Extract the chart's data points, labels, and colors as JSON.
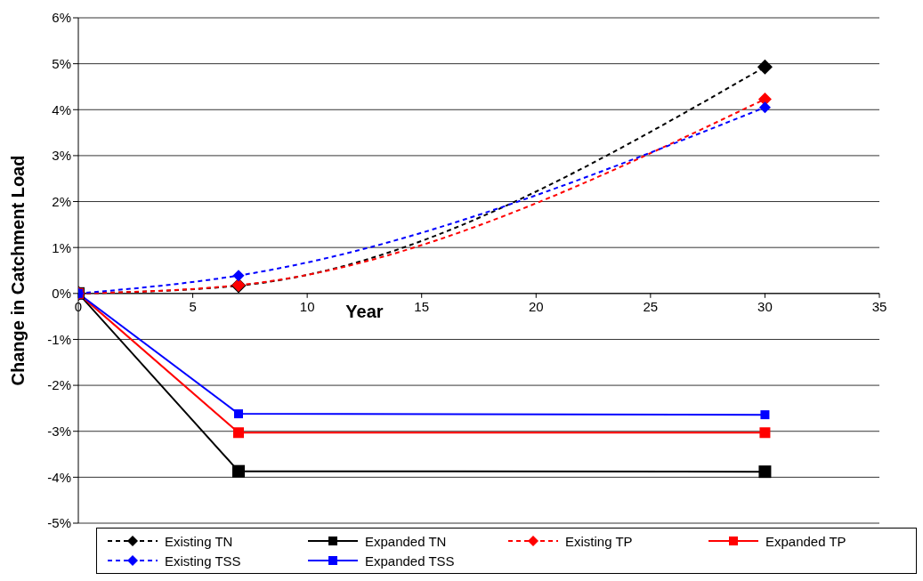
{
  "chart_data": {
    "type": "line",
    "xlabel": "Year",
    "ylabel": "Change in Catchment Load",
    "xlim": [
      0,
      35
    ],
    "xticks": [
      0,
      5,
      10,
      15,
      20,
      25,
      30,
      35
    ],
    "ylim": [
      -5,
      6
    ],
    "yticks": [
      {
        "value": -5,
        "label": "-5%"
      },
      {
        "value": -4,
        "label": "-4%"
      },
      {
        "value": -3,
        "label": "-3%"
      },
      {
        "value": -2,
        "label": "-2%"
      },
      {
        "value": -1,
        "label": "-1%"
      },
      {
        "value": 0,
        "label": "0%"
      },
      {
        "value": 1,
        "label": "1%"
      },
      {
        "value": 2,
        "label": "2%"
      },
      {
        "value": 3,
        "label": "3%"
      },
      {
        "value": 4,
        "label": "4%"
      },
      {
        "value": 5,
        "label": "5%"
      },
      {
        "value": 6,
        "label": "6%"
      }
    ],
    "grid": "y",
    "legend": "bottom",
    "x": [
      0,
      7,
      30
    ],
    "series": [
      {
        "name": "Existing TN",
        "color": "#000000",
        "values": [
          0,
          0.17,
          4.93
        ],
        "marker": "diamond",
        "line_style": "dashed"
      },
      {
        "name": "Expanded TN",
        "color": "#000000",
        "values": [
          0,
          -3.87,
          -3.88
        ],
        "marker": "square",
        "line_style": "solid"
      },
      {
        "name": "Existing TP",
        "color": "#ff0000",
        "values": [
          0,
          0.18,
          4.23
        ],
        "marker": "diamond",
        "line_style": "dashed"
      },
      {
        "name": "Expanded TP",
        "color": "#ff0000",
        "values": [
          0,
          -3.03,
          -3.03
        ],
        "marker": "square",
        "line_style": "solid"
      },
      {
        "name": "Existing TSS",
        "color": "#0000ff",
        "values": [
          0,
          0.39,
          4.05
        ],
        "marker": "diamond",
        "line_style": "dashed"
      },
      {
        "name": "Expanded TSS",
        "color": "#0000ff",
        "values": [
          0,
          -2.62,
          -2.64
        ],
        "marker": "square",
        "line_style": "solid"
      }
    ]
  }
}
